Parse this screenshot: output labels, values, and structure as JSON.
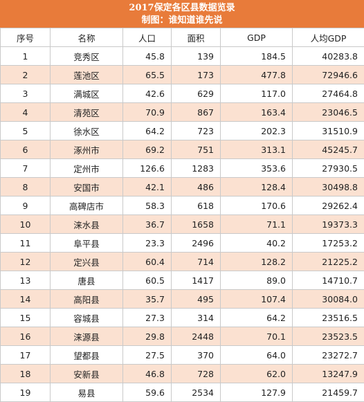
{
  "header": {
    "title": "2017保定各区县数据览录",
    "subtitle": "制图：谁知道谁先说"
  },
  "columns": [
    "序号",
    "名称",
    "人口",
    "面积",
    "GDP",
    "人均GDP"
  ],
  "rows": [
    {
      "idx": "1",
      "name": "竞秀区",
      "pop": "45.8",
      "area": "139",
      "gdp": "184.5",
      "per": "40283.8"
    },
    {
      "idx": "2",
      "name": "莲池区",
      "pop": "65.5",
      "area": "173",
      "gdp": "477.8",
      "per": "72946.6"
    },
    {
      "idx": "3",
      "name": "满城区",
      "pop": "42.6",
      "area": "629",
      "gdp": "117.0",
      "per": "27464.8"
    },
    {
      "idx": "4",
      "name": "清苑区",
      "pop": "70.9",
      "area": "867",
      "gdp": "163.4",
      "per": "23046.5"
    },
    {
      "idx": "5",
      "name": "徐水区",
      "pop": "64.2",
      "area": "723",
      "gdp": "202.3",
      "per": "31510.9"
    },
    {
      "idx": "6",
      "name": "涿州市",
      "pop": "69.2",
      "area": "751",
      "gdp": "313.1",
      "per": "45245.7"
    },
    {
      "idx": "7",
      "name": "定州市",
      "pop": "126.6",
      "area": "1283",
      "gdp": "353.6",
      "per": "27930.5"
    },
    {
      "idx": "8",
      "name": "安国市",
      "pop": "42.1",
      "area": "486",
      "gdp": "128.4",
      "per": "30498.8"
    },
    {
      "idx": "9",
      "name": "高碑店市",
      "pop": "58.3",
      "area": "618",
      "gdp": "170.6",
      "per": "29262.4"
    },
    {
      "idx": "10",
      "name": "涞水县",
      "pop": "36.7",
      "area": "1658",
      "gdp": "71.1",
      "per": "19373.3"
    },
    {
      "idx": "11",
      "name": "阜平县",
      "pop": "23.3",
      "area": "2496",
      "gdp": "40.2",
      "per": "17253.2"
    },
    {
      "idx": "12",
      "name": "定兴县",
      "pop": "60.4",
      "area": "714",
      "gdp": "128.2",
      "per": "21225.2"
    },
    {
      "idx": "13",
      "name": "唐县",
      "pop": "60.5",
      "area": "1417",
      "gdp": "89.0",
      "per": "14710.7"
    },
    {
      "idx": "14",
      "name": "高阳县",
      "pop": "35.7",
      "area": "495",
      "gdp": "107.4",
      "per": "30084.0"
    },
    {
      "idx": "15",
      "name": "容城县",
      "pop": "27.3",
      "area": "314",
      "gdp": "64.2",
      "per": "23516.5"
    },
    {
      "idx": "16",
      "name": "涞源县",
      "pop": "29.8",
      "area": "2448",
      "gdp": "70.1",
      "per": "23523.5"
    },
    {
      "idx": "17",
      "name": "望都县",
      "pop": "27.5",
      "area": "370",
      "gdp": "64.0",
      "per": "23272.7"
    },
    {
      "idx": "18",
      "name": "安新县",
      "pop": "46.8",
      "area": "728",
      "gdp": "62.0",
      "per": "13247.9"
    },
    {
      "idx": "19",
      "name": "易县",
      "pop": "59.6",
      "area": "2534",
      "gdp": "127.9",
      "per": "21459.7"
    }
  ]
}
